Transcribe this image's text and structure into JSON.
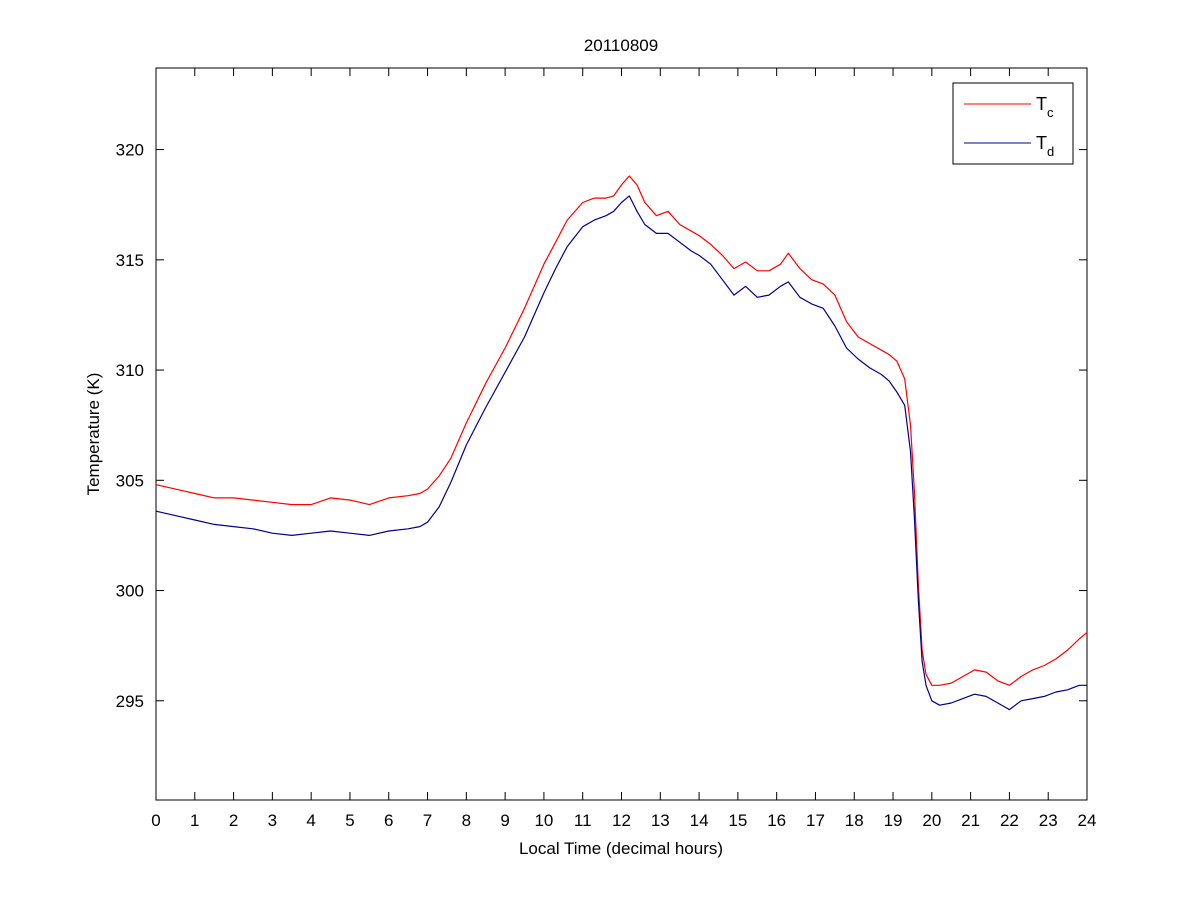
{
  "chart_data": {
    "type": "line",
    "title": "20110809",
    "xlabel": "Local Time (decimal hours)",
    "ylabel": "Temperature (K)",
    "xlim": [
      0,
      24
    ],
    "ylim": [
      290.5,
      323.7
    ],
    "xticks": [
      0,
      1,
      2,
      3,
      4,
      5,
      6,
      7,
      8,
      9,
      10,
      11,
      12,
      13,
      14,
      15,
      16,
      17,
      18,
      19,
      20,
      21,
      22,
      23,
      24
    ],
    "yticks": [
      295,
      300,
      305,
      310,
      315,
      320
    ],
    "grid": false,
    "legend_position": "top-right",
    "series": [
      {
        "name": "T",
        "name_subscript": "c",
        "color": "#ff0000",
        "x": [
          0,
          0.5,
          1,
          1.5,
          2,
          2.5,
          3,
          3.5,
          4,
          4.5,
          5,
          5.5,
          6,
          6.5,
          6.8,
          7.0,
          7.3,
          7.6,
          8.0,
          8.5,
          9.0,
          9.5,
          10.0,
          10.3,
          10.6,
          11.0,
          11.3,
          11.6,
          11.8,
          12.0,
          12.2,
          12.4,
          12.6,
          12.9,
          13.2,
          13.5,
          13.8,
          14.0,
          14.3,
          14.6,
          14.9,
          15.2,
          15.5,
          15.8,
          16.1,
          16.3,
          16.6,
          16.9,
          17.2,
          17.5,
          17.8,
          18.1,
          18.4,
          18.7,
          18.9,
          19.1,
          19.3,
          19.45,
          19.55,
          19.65,
          19.75,
          19.85,
          20.0,
          20.2,
          20.5,
          20.8,
          21.1,
          21.4,
          21.7,
          22.0,
          22.3,
          22.6,
          22.9,
          23.2,
          23.5,
          23.8,
          24.0
        ],
        "y": [
          304.8,
          304.6,
          304.4,
          304.2,
          304.2,
          304.1,
          304.0,
          303.9,
          303.9,
          304.2,
          304.1,
          303.9,
          304.2,
          304.3,
          304.4,
          304.6,
          305.2,
          306.0,
          307.6,
          309.4,
          311.0,
          312.8,
          314.8,
          315.8,
          316.8,
          317.6,
          317.8,
          317.8,
          317.9,
          318.4,
          318.8,
          318.4,
          317.6,
          317.0,
          317.2,
          316.6,
          316.3,
          316.1,
          315.7,
          315.2,
          314.6,
          314.9,
          314.5,
          314.5,
          314.8,
          315.3,
          314.6,
          314.1,
          313.9,
          313.4,
          312.2,
          311.5,
          311.2,
          310.9,
          310.7,
          310.4,
          309.6,
          307.5,
          304.5,
          300.3,
          297.3,
          296.2,
          295.7,
          295.7,
          295.8,
          296.1,
          296.4,
          296.3,
          295.9,
          295.7,
          296.1,
          296.4,
          296.6,
          296.9,
          297.3,
          297.8,
          298.1
        ]
      },
      {
        "name": "T",
        "name_subscript": "d",
        "color": "#00008b",
        "x": [
          0,
          0.5,
          1,
          1.5,
          2,
          2.5,
          3,
          3.5,
          4,
          4.5,
          5,
          5.5,
          6,
          6.5,
          6.8,
          7.0,
          7.3,
          7.6,
          8.0,
          8.5,
          9.0,
          9.5,
          10.0,
          10.3,
          10.6,
          11.0,
          11.3,
          11.6,
          11.8,
          12.0,
          12.2,
          12.4,
          12.6,
          12.9,
          13.2,
          13.5,
          13.8,
          14.0,
          14.3,
          14.6,
          14.9,
          15.2,
          15.5,
          15.8,
          16.1,
          16.3,
          16.6,
          16.9,
          17.2,
          17.5,
          17.8,
          18.1,
          18.4,
          18.7,
          18.9,
          19.1,
          19.3,
          19.45,
          19.55,
          19.65,
          19.75,
          19.85,
          20.0,
          20.2,
          20.5,
          20.8,
          21.1,
          21.4,
          21.7,
          22.0,
          22.3,
          22.6,
          22.9,
          23.2,
          23.5,
          23.8,
          24.0
        ],
        "y": [
          303.6,
          303.4,
          303.2,
          303.0,
          302.9,
          302.8,
          302.6,
          302.5,
          302.6,
          302.7,
          302.6,
          302.5,
          302.7,
          302.8,
          302.9,
          303.1,
          303.8,
          304.9,
          306.6,
          308.3,
          309.9,
          311.5,
          313.5,
          314.6,
          315.6,
          316.5,
          316.8,
          317.0,
          317.2,
          317.6,
          317.9,
          317.2,
          316.6,
          316.2,
          316.2,
          315.8,
          315.4,
          315.2,
          314.8,
          314.1,
          313.4,
          313.8,
          313.3,
          313.4,
          313.8,
          314.0,
          313.3,
          313.0,
          312.8,
          312.0,
          311.0,
          310.5,
          310.1,
          309.8,
          309.5,
          309.0,
          308.4,
          306.3,
          303.3,
          299.6,
          296.8,
          295.7,
          295.0,
          294.8,
          294.9,
          295.1,
          295.3,
          295.2,
          294.9,
          294.6,
          295.0,
          295.1,
          295.2,
          295.4,
          295.5,
          295.7,
          295.7
        ]
      }
    ]
  }
}
